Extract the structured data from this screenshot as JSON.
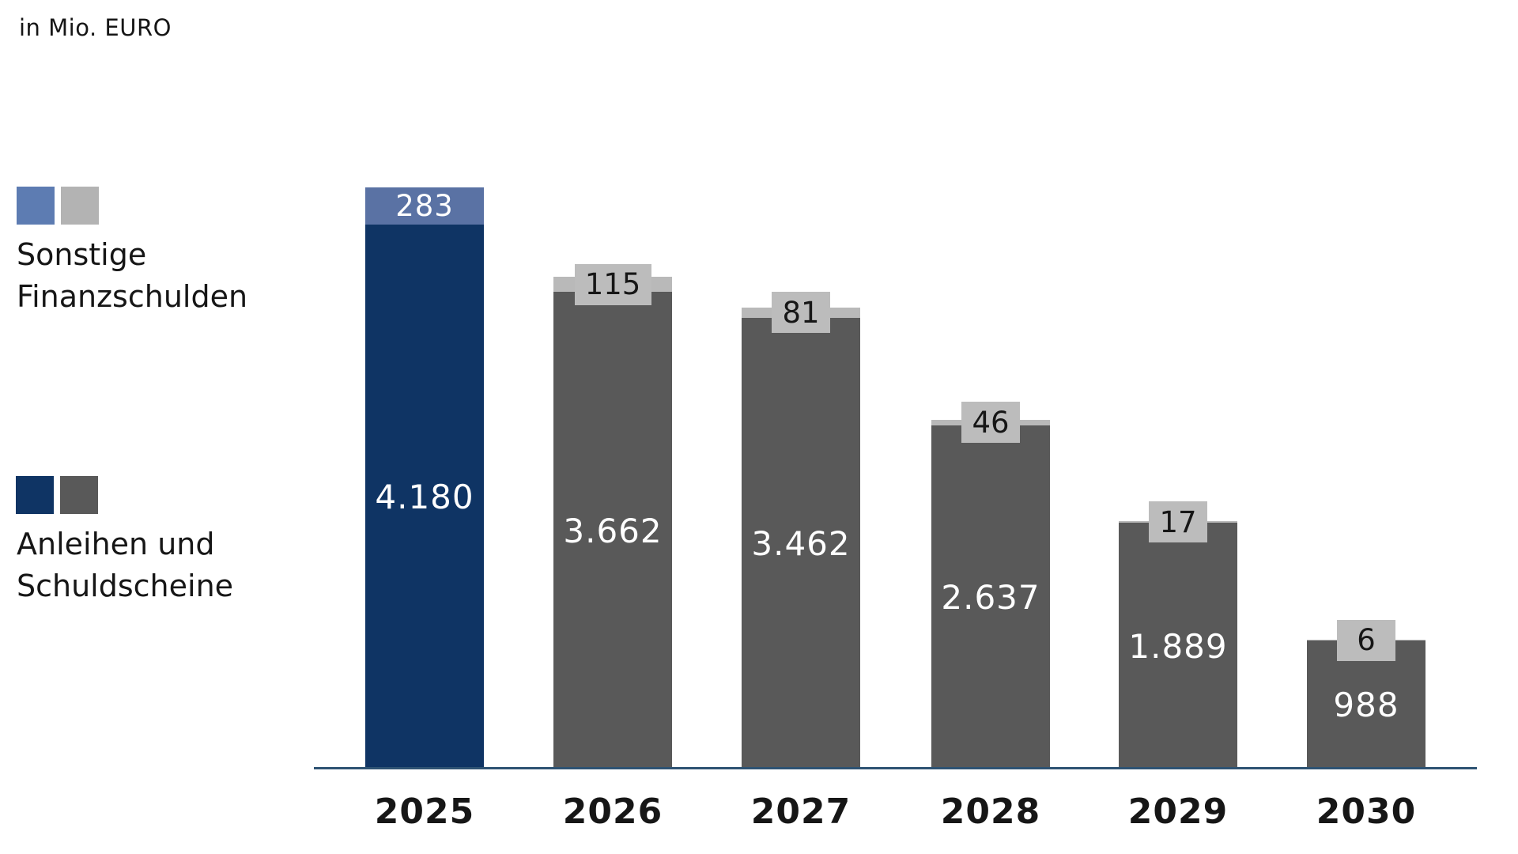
{
  "meta": {
    "title": "in Mio. EURO"
  },
  "legend": {
    "position": "left",
    "items": [
      {
        "id": "sonstige-finanzschulden",
        "label": "Sonstige\nFinanzschulden",
        "swatches": [
          "#5d7cb2",
          "#b3b3b3"
        ]
      },
      {
        "id": "anleihen-und-schuldscheine",
        "label": "Anleihen und\nSchuldscheine",
        "swatches": [
          "#0f3464",
          "#595959"
        ]
      }
    ]
  },
  "chart_data": {
    "type": "bar",
    "stacked": true,
    "title": "in Mio. EURO",
    "unit": "Mio. EURO",
    "categories": [
      "2025",
      "2026",
      "2027",
      "2028",
      "2029",
      "2030"
    ],
    "series": [
      {
        "name": "Anleihen und Schuldscheine",
        "values": [
          4180,
          3662,
          3462,
          2637,
          1889,
          988
        ],
        "labels": [
          "4.180",
          "3.662",
          "3.462",
          "2.637",
          "1.889",
          "988"
        ]
      },
      {
        "name": "Sonstige Finanzschulden",
        "values": [
          283,
          115,
          81,
          46,
          17,
          6
        ],
        "labels": [
          "283",
          "115",
          "81",
          "46",
          "17",
          "6"
        ]
      }
    ],
    "totals": [
      4463,
      3777,
      3543,
      2683,
      1906,
      994
    ],
    "highlight_category": "2025",
    "xlabel": "",
    "ylabel": "in Mio. EURO",
    "ylim": [
      0,
      4463
    ],
    "grid": false,
    "legend_position": "left",
    "value_labels_visible": true,
    "y_axis_ticks_visible": false
  },
  "colors": {
    "highlight_primary": "#0f3464",
    "highlight_secondary": "#5a72a4",
    "other_primary": "#595959",
    "other_secondary": "#b9b9b9",
    "label_box_bg": "#bcbcbc",
    "axis_line": "#2e5373",
    "text_dark": "#161616",
    "text_light": "#ffffff"
  }
}
